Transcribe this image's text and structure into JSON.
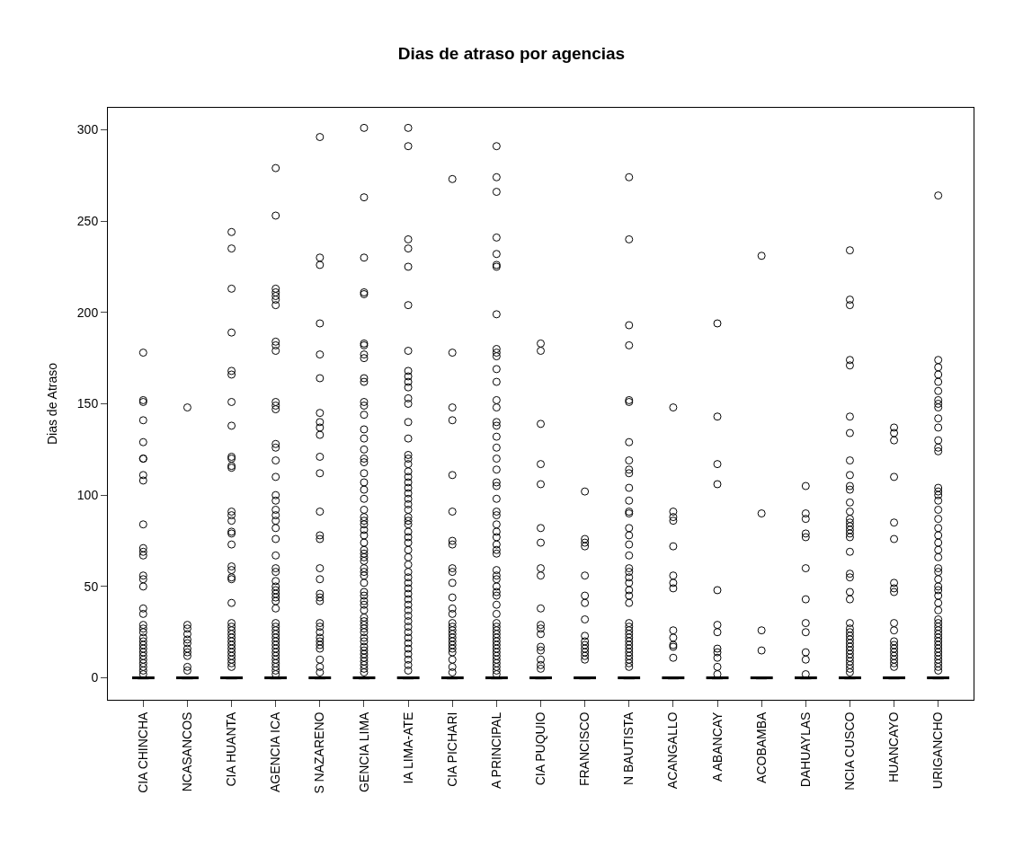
{
  "chart_data": {
    "type": "box",
    "title": "Dias de atraso por agencias",
    "ylabel": "Dias de Atraso",
    "categories": [
      "CIA CHINCHA",
      "NCASANCOS",
      "CIA HUANTA",
      "AGENCIA ICA",
      "S NAZARENO",
      "GENCIA LIMA",
      "IA LIMA-ATE",
      "CIA PICHARI",
      "A PRINCIPAL",
      "CIA PUQUIO",
      "FRANCISCO",
      "N BAUTISTA",
      "ACANGALLO",
      "A ABANCAY",
      "ACOBAMBA",
      "DAHUAYLAS",
      "NCIA CUSCO",
      "HUANCAYO",
      "URIGANCHO"
    ],
    "color": "#000000",
    "marker": "circle",
    "grid": false,
    "ylim": [
      -12,
      312
    ],
    "yticks": [
      0,
      50,
      100,
      150,
      200,
      250,
      300
    ],
    "boxes": [
      {
        "low": 0,
        "q1": 0,
        "median": 0,
        "q3": 0,
        "high": 0,
        "outliers": [
          178,
          152,
          151,
          141,
          129,
          120,
          120,
          111,
          108,
          84,
          71,
          69,
          67,
          56,
          54,
          50,
          38,
          35,
          29,
          27,
          25,
          22,
          20,
          18,
          16,
          14,
          12,
          10,
          8,
          6,
          4,
          2
        ]
      },
      {
        "low": 0,
        "q1": 0,
        "median": 0,
        "q3": 0,
        "high": 0,
        "outliers": [
          148,
          29,
          27,
          24,
          21,
          19,
          16,
          14,
          12,
          6,
          4
        ]
      },
      {
        "low": 0,
        "q1": 0,
        "median": 0,
        "q3": 0,
        "high": 0,
        "outliers": [
          244,
          235,
          213,
          189,
          168,
          166,
          151,
          138,
          121,
          120,
          116,
          115,
          91,
          89,
          86,
          80,
          79,
          73,
          61,
          59,
          55,
          54,
          41,
          30,
          28,
          26,
          24,
          22,
          20,
          18,
          16,
          14,
          12,
          10,
          8,
          6
        ]
      },
      {
        "low": 0,
        "q1": 0,
        "median": 0,
        "q3": 0,
        "high": 0,
        "outliers": [
          279,
          253,
          213,
          211,
          209,
          207,
          204,
          184,
          182,
          179,
          151,
          149,
          147,
          128,
          126,
          119,
          110,
          100,
          97,
          92,
          89,
          86,
          82,
          76,
          67,
          60,
          58,
          53,
          50,
          48,
          46,
          44,
          42,
          38,
          30,
          28,
          26,
          24,
          22,
          20,
          18,
          16,
          14,
          12,
          10,
          8,
          6,
          4,
          2
        ]
      },
      {
        "low": 0,
        "q1": 0,
        "median": 0,
        "q3": 0,
        "high": 0,
        "outliers": [
          296,
          230,
          226,
          194,
          177,
          164,
          145,
          140,
          137,
          133,
          121,
          112,
          91,
          78,
          76,
          60,
          54,
          46,
          44,
          42,
          30,
          28,
          25,
          22,
          20,
          18,
          16,
          10,
          6,
          3
        ]
      },
      {
        "low": 0,
        "q1": 0,
        "median": 0,
        "q3": 0,
        "high": 0,
        "outliers": [
          301,
          263,
          230,
          211,
          210,
          183,
          182,
          177,
          175,
          164,
          162,
          151,
          149,
          144,
          136,
          131,
          125,
          120,
          118,
          112,
          107,
          103,
          98,
          92,
          88,
          86,
          84,
          81,
          78,
          74,
          70,
          68,
          66,
          64,
          60,
          58,
          56,
          52,
          47,
          45,
          42,
          40,
          37,
          33,
          31,
          29,
          27,
          25,
          22,
          20,
          17,
          15,
          13,
          11,
          9,
          7,
          5,
          3
        ]
      },
      {
        "low": 0,
        "q1": 0,
        "median": 0,
        "q3": 0,
        "high": 0,
        "outliers": [
          301,
          291,
          240,
          235,
          225,
          204,
          179,
          168,
          165,
          162,
          159,
          153,
          150,
          140,
          131,
          122,
          120,
          117,
          113,
          110,
          107,
          104,
          101,
          98,
          95,
          92,
          88,
          86,
          84,
          80,
          77,
          74,
          70,
          66,
          62,
          58,
          55,
          52,
          49,
          46,
          43,
          40,
          37,
          34,
          31,
          28,
          25,
          22,
          19,
          16,
          13,
          10,
          7,
          4
        ]
      },
      {
        "low": 0,
        "q1": 0,
        "median": 0,
        "q3": 0,
        "high": 0,
        "outliers": [
          273,
          178,
          148,
          141,
          111,
          91,
          75,
          73,
          60,
          58,
          52,
          44,
          38,
          35,
          30,
          28,
          26,
          24,
          22,
          20,
          18,
          16,
          14,
          10,
          6,
          3
        ]
      },
      {
        "low": 0,
        "q1": 0,
        "median": 0,
        "q3": 0,
        "high": 0,
        "outliers": [
          291,
          274,
          266,
          241,
          232,
          226,
          225,
          199,
          180,
          178,
          176,
          169,
          162,
          152,
          148,
          140,
          138,
          132,
          126,
          120,
          114,
          107,
          105,
          98,
          91,
          89,
          84,
          80,
          77,
          73,
          70,
          68,
          59,
          56,
          54,
          50,
          47,
          45,
          40,
          35,
          30,
          28,
          26,
          24,
          22,
          20,
          18,
          16,
          14,
          12,
          10,
          8,
          6,
          4,
          2
        ]
      },
      {
        "low": 0,
        "q1": 0,
        "median": 0,
        "q3": 0,
        "high": 0,
        "outliers": [
          183,
          179,
          139,
          117,
          106,
          82,
          74,
          60,
          56,
          38,
          29,
          27,
          24,
          17,
          15,
          10,
          7,
          5
        ]
      },
      {
        "low": 0,
        "q1": 0,
        "median": 0,
        "q3": 0,
        "high": 0,
        "outliers": [
          102,
          76,
          74,
          72,
          56,
          45,
          41,
          32,
          23,
          20,
          18,
          16,
          14,
          12,
          10
        ]
      },
      {
        "low": 0,
        "q1": 0,
        "median": 0,
        "q3": 0,
        "high": 0,
        "outliers": [
          274,
          240,
          193,
          182,
          152,
          151,
          129,
          119,
          114,
          112,
          104,
          97,
          91,
          90,
          82,
          78,
          73,
          67,
          60,
          58,
          55,
          52,
          48,
          45,
          41,
          30,
          28,
          26,
          24,
          22,
          20,
          18,
          16,
          14,
          12,
          10,
          8,
          6
        ]
      },
      {
        "low": 0,
        "q1": 0,
        "median": 0,
        "q3": 0,
        "high": 0,
        "outliers": [
          148,
          91,
          88,
          86,
          72,
          56,
          52,
          49,
          26,
          22,
          18,
          17,
          11
        ]
      },
      {
        "low": 0,
        "q1": 0,
        "median": 0,
        "q3": 0,
        "high": 0,
        "outliers": [
          194,
          143,
          117,
          106,
          48,
          29,
          25,
          16,
          14,
          11,
          6,
          2
        ]
      },
      {
        "low": 0,
        "q1": 0,
        "median": 0,
        "q3": 0,
        "high": 0,
        "outliers": [
          231,
          90,
          26,
          15
        ]
      },
      {
        "low": 0,
        "q1": 0,
        "median": 0,
        "q3": 0,
        "high": 0,
        "outliers": [
          105,
          90,
          87,
          79,
          77,
          60,
          43,
          30,
          25,
          14,
          10,
          2
        ]
      },
      {
        "low": 0,
        "q1": 0,
        "median": 0,
        "q3": 0,
        "high": 0,
        "outliers": [
          234,
          207,
          204,
          174,
          171,
          143,
          134,
          119,
          111,
          105,
          103,
          96,
          91,
          87,
          85,
          83,
          81,
          79,
          77,
          69,
          57,
          55,
          47,
          43,
          30,
          27,
          25,
          23,
          21,
          19,
          17,
          15,
          13,
          11,
          9,
          7,
          5,
          3
        ]
      },
      {
        "low": 0,
        "q1": 0,
        "median": 0,
        "q3": 0,
        "high": 0,
        "outliers": [
          137,
          134,
          130,
          110,
          85,
          76,
          52,
          49,
          47,
          30,
          26,
          20,
          18,
          16,
          14,
          12,
          10,
          8,
          6
        ]
      },
      {
        "low": 0,
        "q1": 0,
        "median": 0,
        "q3": 0,
        "high": 0,
        "outliers": [
          264,
          174,
          170,
          166,
          162,
          157,
          152,
          150,
          148,
          142,
          137,
          130,
          126,
          124,
          104,
          102,
          100,
          97,
          92,
          87,
          82,
          78,
          74,
          70,
          66,
          60,
          58,
          54,
          50,
          48,
          45,
          41,
          37,
          32,
          30,
          28,
          26,
          24,
          22,
          20,
          18,
          16,
          14,
          12,
          10,
          8,
          6,
          4
        ]
      }
    ]
  }
}
